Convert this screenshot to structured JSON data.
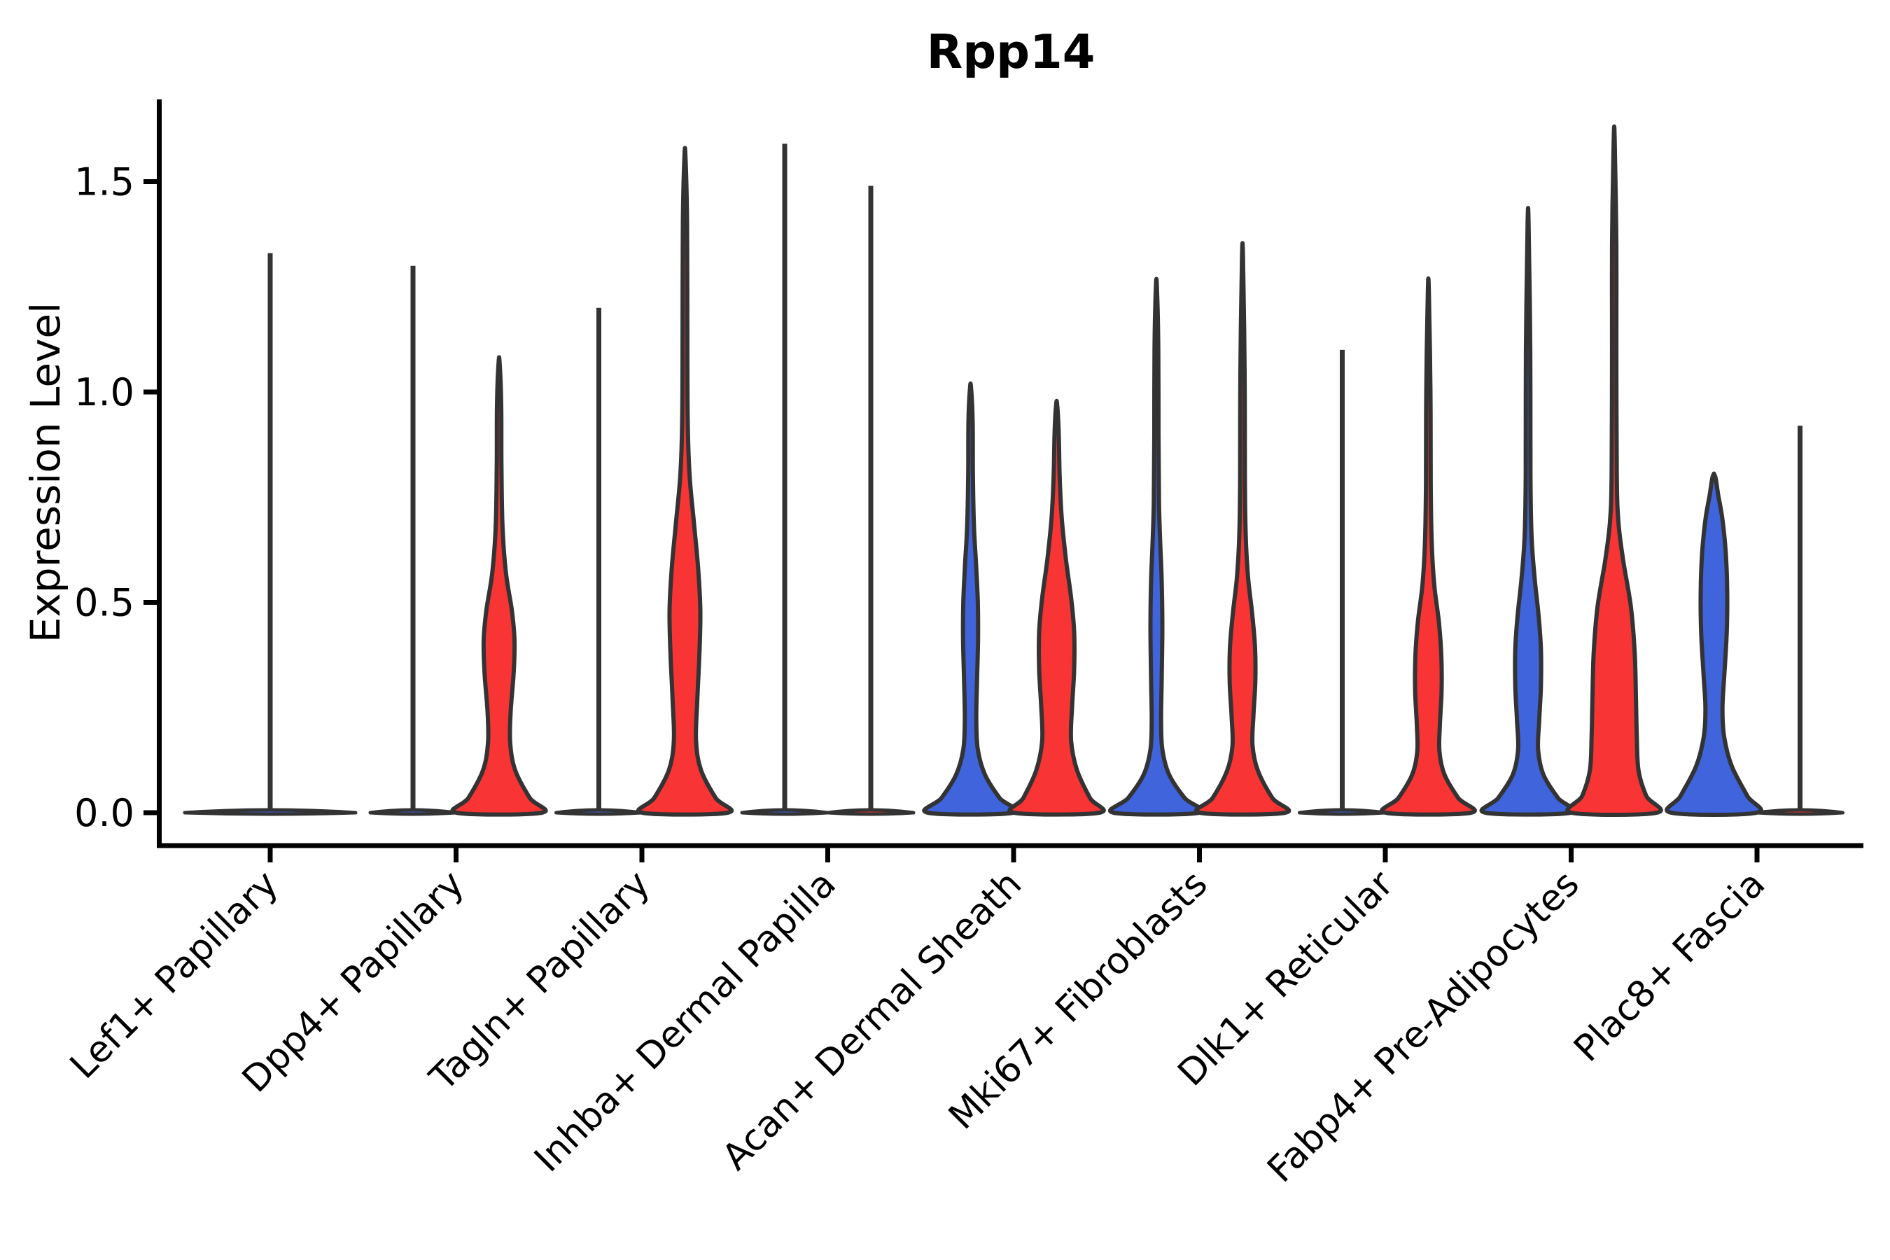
{
  "title": "Rpp14",
  "ylabel": "Expression Level",
  "colors": {
    "blue": "#3F64DC",
    "red": "#F93434",
    "outline": "#333333",
    "axis": "#000000",
    "background": "#ffffff"
  },
  "yaxis": {
    "ticks": [
      "0.0",
      "0.5",
      "1.0",
      "1.5"
    ],
    "tick_values": [
      0.0,
      0.5,
      1.0,
      1.5
    ]
  },
  "chart_data": {
    "type": "violin",
    "title": "Rpp14",
    "xlabel": "",
    "ylabel": "Expression Level",
    "ylim": [
      0,
      1.68
    ],
    "grid": false,
    "legend": "none",
    "groups": [
      "blue",
      "red"
    ],
    "categories": [
      "Lef1+ Papillary",
      "Dpp4+ Papillary",
      "Tagln+ Papillary",
      "Inhba+ Dermal Papilla",
      "Acan+ Dermal Sheath",
      "Mki67+ Fibroblasts",
      "Dlk1+ Reticular",
      "Fabp4+ Pre-Adipocytes",
      "Plac8+ Fascia"
    ],
    "violins": [
      {
        "category": 0,
        "side": 0,
        "group": "blue",
        "shape": "flat",
        "peak": 1.33,
        "width_mult": 2,
        "note": "single full-width flat violin, nearly all zeros, max 1.33"
      },
      {
        "category": 1,
        "side": -1,
        "group": "blue",
        "shape": "flat",
        "peak": 1.3
      },
      {
        "category": 1,
        "side": 1,
        "group": "red",
        "shape": "density",
        "peak": 1.07,
        "profile": [
          [
            0,
            1.0
          ],
          [
            0.035,
            0.72
          ],
          [
            0.1,
            0.38
          ],
          [
            0.165,
            0.26
          ],
          [
            0.24,
            0.27
          ],
          [
            0.33,
            0.34
          ],
          [
            0.41,
            0.36
          ],
          [
            0.48,
            0.3
          ],
          [
            0.57,
            0.16
          ],
          [
            0.68,
            0.08
          ],
          [
            0.82,
            0.055
          ],
          [
            0.97,
            0.05
          ],
          [
            1.07,
            0.012
          ]
        ]
      },
      {
        "category": 2,
        "side": -1,
        "group": "blue",
        "shape": "flat",
        "peak": 1.2
      },
      {
        "category": 2,
        "side": 1,
        "group": "red",
        "shape": "density",
        "peak": 1.56,
        "profile": [
          [
            0,
            1.0
          ],
          [
            0.035,
            0.72
          ],
          [
            0.1,
            0.38
          ],
          [
            0.17,
            0.26
          ],
          [
            0.27,
            0.29
          ],
          [
            0.38,
            0.34
          ],
          [
            0.48,
            0.36
          ],
          [
            0.58,
            0.31
          ],
          [
            0.69,
            0.21
          ],
          [
            0.8,
            0.11
          ],
          [
            0.93,
            0.065
          ],
          [
            1.15,
            0.055
          ],
          [
            1.4,
            0.05
          ],
          [
            1.56,
            0.012
          ]
        ]
      },
      {
        "category": 3,
        "side": -1,
        "group": "blue",
        "shape": "flat",
        "peak": 1.59
      },
      {
        "category": 3,
        "side": 1,
        "group": "red",
        "shape": "flat",
        "peak": 1.49
      },
      {
        "category": 4,
        "side": -1,
        "group": "blue",
        "shape": "density",
        "peak": 1.01,
        "profile": [
          [
            0,
            1.0
          ],
          [
            0.035,
            0.68
          ],
          [
            0.09,
            0.34
          ],
          [
            0.15,
            0.17
          ],
          [
            0.22,
            0.135
          ],
          [
            0.31,
            0.15
          ],
          [
            0.41,
            0.175
          ],
          [
            0.5,
            0.17
          ],
          [
            0.59,
            0.13
          ],
          [
            0.68,
            0.08
          ],
          [
            0.8,
            0.055
          ],
          [
            0.93,
            0.05
          ],
          [
            1.01,
            0.012
          ]
        ]
      },
      {
        "category": 4,
        "side": 1,
        "group": "red",
        "shape": "density",
        "peak": 0.97,
        "profile": [
          [
            0,
            1.0
          ],
          [
            0.035,
            0.78
          ],
          [
            0.1,
            0.48
          ],
          [
            0.17,
            0.34
          ],
          [
            0.25,
            0.36
          ],
          [
            0.34,
            0.41
          ],
          [
            0.43,
            0.41
          ],
          [
            0.51,
            0.34
          ],
          [
            0.6,
            0.22
          ],
          [
            0.7,
            0.12
          ],
          [
            0.8,
            0.07
          ],
          [
            0.9,
            0.05
          ],
          [
            0.97,
            0.012
          ]
        ]
      },
      {
        "category": 5,
        "side": -1,
        "group": "blue",
        "shape": "density",
        "peak": 1.25,
        "profile": [
          [
            0,
            1.0
          ],
          [
            0.035,
            0.66
          ],
          [
            0.09,
            0.3
          ],
          [
            0.15,
            0.14
          ],
          [
            0.22,
            0.11
          ],
          [
            0.32,
            0.125
          ],
          [
            0.44,
            0.14
          ],
          [
            0.55,
            0.125
          ],
          [
            0.64,
            0.09
          ],
          [
            0.74,
            0.06
          ],
          [
            0.9,
            0.05
          ],
          [
            1.1,
            0.045
          ],
          [
            1.25,
            0.012
          ]
        ]
      },
      {
        "category": 5,
        "side": 1,
        "group": "red",
        "shape": "density",
        "peak": 1.32,
        "profile": [
          [
            0,
            1.0
          ],
          [
            0.035,
            0.7
          ],
          [
            0.1,
            0.36
          ],
          [
            0.16,
            0.235
          ],
          [
            0.23,
            0.255
          ],
          [
            0.31,
            0.3
          ],
          [
            0.39,
            0.295
          ],
          [
            0.47,
            0.23
          ],
          [
            0.56,
            0.13
          ],
          [
            0.66,
            0.075
          ],
          [
            0.8,
            0.055
          ],
          [
            1.05,
            0.05
          ],
          [
            1.32,
            0.012
          ]
        ]
      },
      {
        "category": 6,
        "side": -1,
        "group": "blue",
        "shape": "flat",
        "peak": 1.1
      },
      {
        "category": 6,
        "side": 1,
        "group": "red",
        "shape": "density",
        "peak": 1.24,
        "profile": [
          [
            0,
            1.0
          ],
          [
            0.035,
            0.7
          ],
          [
            0.09,
            0.38
          ],
          [
            0.145,
            0.26
          ],
          [
            0.21,
            0.27
          ],
          [
            0.29,
            0.31
          ],
          [
            0.37,
            0.305
          ],
          [
            0.45,
            0.25
          ],
          [
            0.54,
            0.14
          ],
          [
            0.64,
            0.08
          ],
          [
            0.78,
            0.055
          ],
          [
            1.0,
            0.05
          ],
          [
            1.24,
            0.012
          ]
        ]
      },
      {
        "category": 7,
        "side": -1,
        "group": "blue",
        "shape": "density",
        "peak": 1.4,
        "profile": [
          [
            0,
            1.0
          ],
          [
            0.035,
            0.7
          ],
          [
            0.09,
            0.36
          ],
          [
            0.15,
            0.235
          ],
          [
            0.22,
            0.26
          ],
          [
            0.3,
            0.3
          ],
          [
            0.39,
            0.3
          ],
          [
            0.47,
            0.245
          ],
          [
            0.56,
            0.15
          ],
          [
            0.66,
            0.08
          ],
          [
            0.8,
            0.055
          ],
          [
            1.1,
            0.05
          ],
          [
            1.4,
            0.012
          ]
        ]
      },
      {
        "category": 7,
        "side": 1,
        "group": "red",
        "shape": "density",
        "peak": 1.6,
        "profile": [
          [
            0,
            1.0
          ],
          [
            0.04,
            0.75
          ],
          [
            0.1,
            0.57
          ],
          [
            0.18,
            0.53
          ],
          [
            0.27,
            0.51
          ],
          [
            0.38,
            0.48
          ],
          [
            0.49,
            0.39
          ],
          [
            0.6,
            0.21
          ],
          [
            0.69,
            0.1
          ],
          [
            0.8,
            0.06
          ],
          [
            1.1,
            0.05
          ],
          [
            1.35,
            0.05
          ],
          [
            1.6,
            0.012
          ]
        ]
      },
      {
        "category": 8,
        "side": -1,
        "group": "blue",
        "shape": "density",
        "peak": 0.8,
        "rounded_top": true,
        "profile": [
          [
            0,
            1.0
          ],
          [
            0.04,
            0.78
          ],
          [
            0.11,
            0.42
          ],
          [
            0.18,
            0.24
          ],
          [
            0.25,
            0.2
          ],
          [
            0.33,
            0.245
          ],
          [
            0.43,
            0.3
          ],
          [
            0.53,
            0.31
          ],
          [
            0.62,
            0.275
          ],
          [
            0.7,
            0.195
          ],
          [
            0.755,
            0.1
          ],
          [
            0.795,
            0.04
          ],
          [
            0.805,
            0.0
          ]
        ]
      },
      {
        "category": 8,
        "side": 1,
        "group": "red",
        "shape": "flat",
        "peak": 0.92
      }
    ]
  }
}
